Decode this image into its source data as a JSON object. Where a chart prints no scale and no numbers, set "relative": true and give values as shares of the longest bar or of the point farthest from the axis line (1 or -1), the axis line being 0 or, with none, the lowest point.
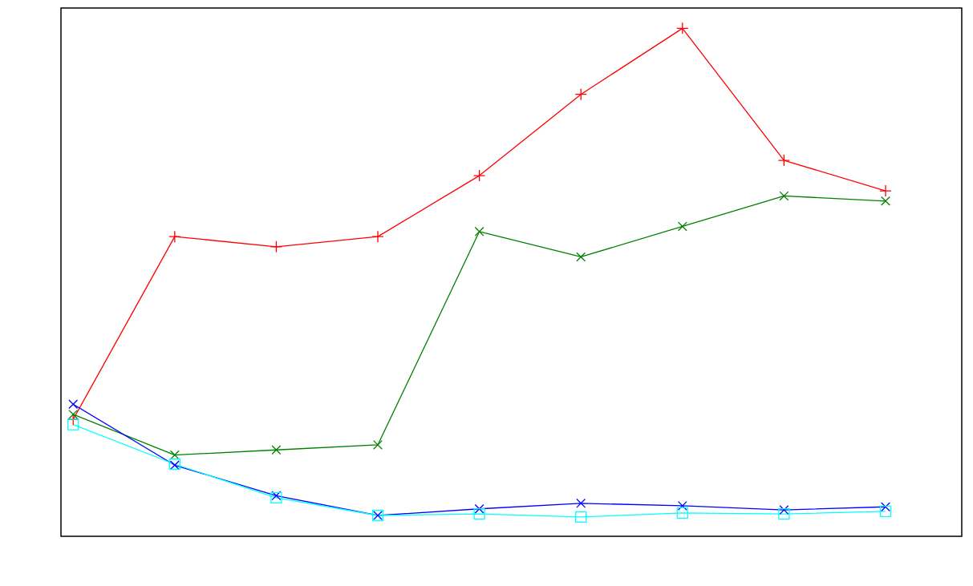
{
  "chart_data": {
    "type": "line",
    "relative": true,
    "categories": [
      null,
      null,
      null,
      null,
      null,
      null,
      null,
      null,
      null
    ],
    "series": [
      {
        "color": "#ff0000",
        "marker": "plus",
        "values": [
          0.23,
          0.59,
          0.57,
          0.59,
          0.71,
          0.87,
          1.0,
          0.74,
          0.68
        ]
      },
      {
        "color": "#008000",
        "marker": "cross",
        "values": [
          0.24,
          0.16,
          0.17,
          0.18,
          0.6,
          0.55,
          0.61,
          0.67,
          0.66
        ]
      },
      {
        "color": "#0000ff",
        "marker": "cross",
        "values": [
          0.26,
          0.14,
          0.08,
          0.041,
          0.054,
          0.065,
          0.06,
          0.052,
          0.058
        ]
      },
      {
        "color": "#00ffff",
        "marker": "square",
        "values": [
          0.22,
          0.142,
          0.076,
          0.041,
          0.044,
          0.038,
          0.046,
          0.044,
          0.049
        ]
      }
    ]
  }
}
